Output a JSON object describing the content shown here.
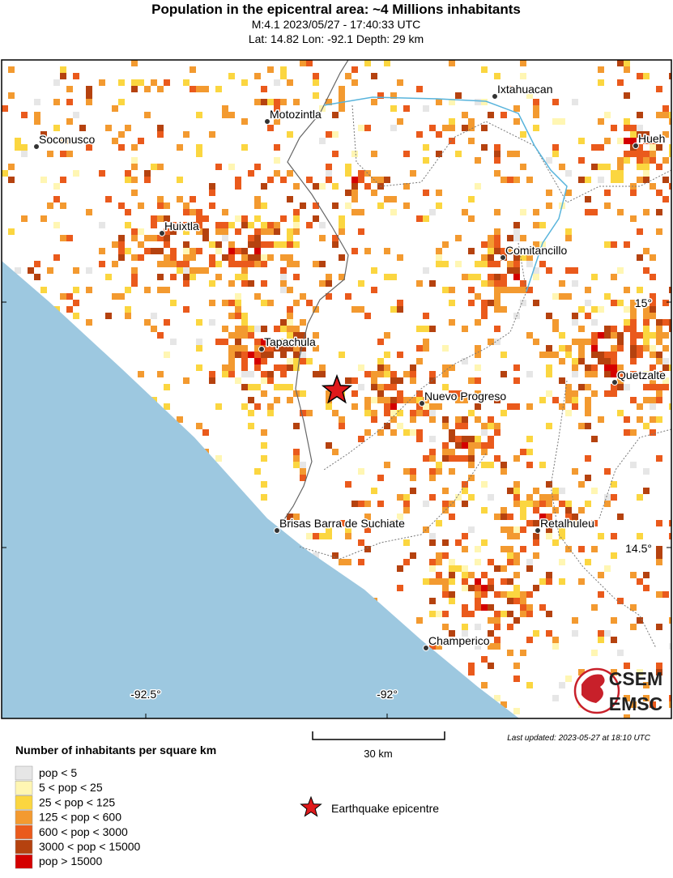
{
  "header": {
    "title": "Population in the epicentral area: ~4 Millions inhabitants",
    "line1": "M:4.1 2023/05/27 - 17:40:33 UTC",
    "line2": "Lat: 14.82 Lon: -92.1 Depth: 29 km"
  },
  "map": {
    "places": [
      "Soconusco",
      "Motozintla",
      "Ixtahuacan",
      "Hueh",
      "Huixtla",
      "Comitancillo",
      "Tapachula",
      "Quetzalte",
      "Nuevo Progreso",
      "Brisas Barra de Suchiate",
      "Retalhuleu",
      "Champerico"
    ],
    "lon_labels": [
      "-92.5°",
      "-92°"
    ],
    "lat_labels": [
      "15°",
      "14.5°"
    ],
    "scale": "30 km",
    "updated": "Last updated: 2023-05-27 at 18:10 UTC",
    "logo": [
      "CSEM",
      "EMSC"
    ]
  },
  "legend": {
    "title": "Number of inhabitants per square km",
    "items": [
      {
        "label": "pop < 5",
        "color": "#e6e6e6"
      },
      {
        "label": "5 < pop < 25",
        "color": "#fff6b3"
      },
      {
        "label": "25 < pop < 125",
        "color": "#fbd640"
      },
      {
        "label": "125 < pop < 600",
        "color": "#f39a30"
      },
      {
        "label": "600 < pop < 3000",
        "color": "#ea5a1c"
      },
      {
        "label": "3000 < pop < 15000",
        "color": "#b5420f"
      },
      {
        "label": "pop > 15000",
        "color": "#d40000"
      }
    ],
    "epicentre": "Earthquake epicentre"
  }
}
